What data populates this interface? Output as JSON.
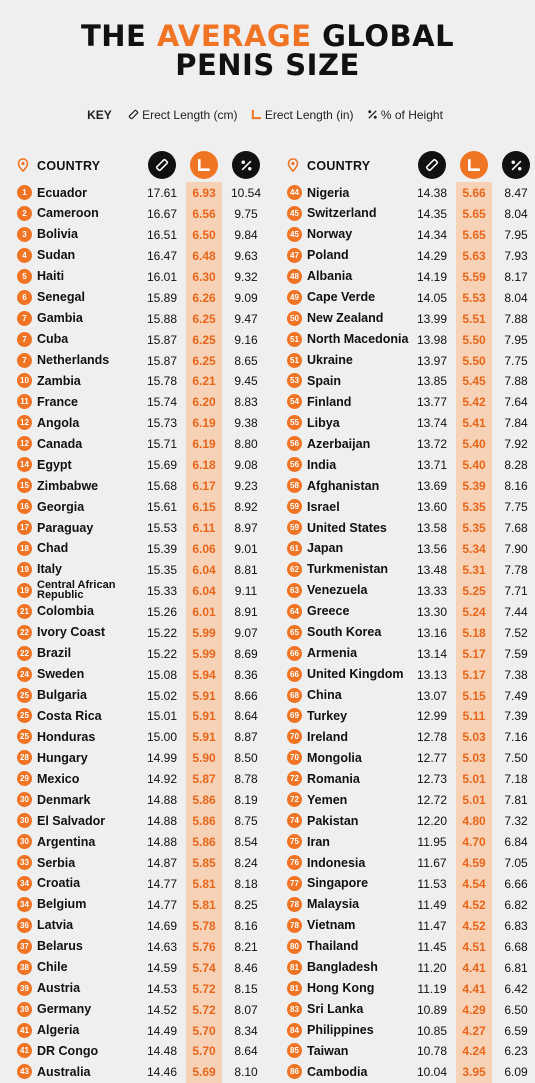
{
  "title": {
    "line1_a": "THE ",
    "line1_accent": "AVERAGE",
    "line1_b": " GLOBAL",
    "line2": "PENIS SIZE"
  },
  "key": {
    "label": "KEY",
    "cm": "Erect Length (cm)",
    "in": "Erect Length (in)",
    "pct": "% of Height"
  },
  "header": {
    "country": "COUNTRY"
  },
  "colors": {
    "accent": "#f07424",
    "band": "#f8d2b6"
  },
  "left_rows": [
    {
      "rank": "1",
      "country": "Ecuador",
      "cm": "17.61",
      "in": "6.93",
      "pct": "10.54"
    },
    {
      "rank": "2",
      "country": "Cameroon",
      "cm": "16.67",
      "in": "6.56",
      "pct": "9.75"
    },
    {
      "rank": "3",
      "country": "Bolivia",
      "cm": "16.51",
      "in": "6.50",
      "pct": "9.84"
    },
    {
      "rank": "4",
      "country": "Sudan",
      "cm": "16.47",
      "in": "6.48",
      "pct": "9.63"
    },
    {
      "rank": "5",
      "country": "Haiti",
      "cm": "16.01",
      "in": "6.30",
      "pct": "9.32"
    },
    {
      "rank": "6",
      "country": "Senegal",
      "cm": "15.89",
      "in": "6.26",
      "pct": "9.09"
    },
    {
      "rank": "7",
      "country": "Gambia",
      "cm": "15.88",
      "in": "6.25",
      "pct": "9.47"
    },
    {
      "rank": "7",
      "country": "Cuba",
      "cm": "15.87",
      "in": "6.25",
      "pct": "9.16"
    },
    {
      "rank": "7",
      "country": "Netherlands",
      "cm": "15.87",
      "in": "6.25",
      "pct": "8.65"
    },
    {
      "rank": "10",
      "country": "Zambia",
      "cm": "15.78",
      "in": "6.21",
      "pct": "9.45"
    },
    {
      "rank": "11",
      "country": "France",
      "cm": "15.74",
      "in": "6.20",
      "pct": "8.83"
    },
    {
      "rank": "12",
      "country": "Angola",
      "cm": "15.73",
      "in": "6.19",
      "pct": "9.38"
    },
    {
      "rank": "12",
      "country": "Canada",
      "cm": "15.71",
      "in": "6.19",
      "pct": "8.80"
    },
    {
      "rank": "14",
      "country": "Egypt",
      "cm": "15.69",
      "in": "6.18",
      "pct": "9.08"
    },
    {
      "rank": "15",
      "country": "Zimbabwe",
      "cm": "15.68",
      "in": "6.17",
      "pct": "9.23"
    },
    {
      "rank": "16",
      "country": "Georgia",
      "cm": "15.61",
      "in": "6.15",
      "pct": "8.92"
    },
    {
      "rank": "17",
      "country": "Paraguay",
      "cm": "15.53",
      "in": "6.11",
      "pct": "8.97"
    },
    {
      "rank": "18",
      "country": "Chad",
      "cm": "15.39",
      "in": "6.06",
      "pct": "9.01"
    },
    {
      "rank": "19",
      "country": "Italy",
      "cm": "15.35",
      "in": "6.04",
      "pct": "8.81"
    },
    {
      "rank": "19",
      "country": "Central African Republic",
      "cm": "15.33",
      "in": "6.04",
      "pct": "9.11"
    },
    {
      "rank": "21",
      "country": "Colombia",
      "cm": "15.26",
      "in": "6.01",
      "pct": "8.91"
    },
    {
      "rank": "22",
      "country": "Ivory Coast",
      "cm": "15.22",
      "in": "5.99",
      "pct": "9.07"
    },
    {
      "rank": "22",
      "country": "Brazil",
      "cm": "15.22",
      "in": "5.99",
      "pct": "8.69"
    },
    {
      "rank": "24",
      "country": "Sweden",
      "cm": "15.08",
      "in": "5.94",
      "pct": "8.36"
    },
    {
      "rank": "25",
      "country": "Bulgaria",
      "cm": "15.02",
      "in": "5.91",
      "pct": "8.66"
    },
    {
      "rank": "25",
      "country": "Costa Rica",
      "cm": "15.01",
      "in": "5.91",
      "pct": "8.64"
    },
    {
      "rank": "25",
      "country": "Honduras",
      "cm": "15.00",
      "in": "5.91",
      "pct": "8.87"
    },
    {
      "rank": "28",
      "country": "Hungary",
      "cm": "14.99",
      "in": "5.90",
      "pct": "8.50"
    },
    {
      "rank": "29",
      "country": "Mexico",
      "cm": "14.92",
      "in": "5.87",
      "pct": "8.78"
    },
    {
      "rank": "30",
      "country": "Denmark",
      "cm": "14.88",
      "in": "5.86",
      "pct": "8.19"
    },
    {
      "rank": "30",
      "country": "El Salvador",
      "cm": "14.88",
      "in": "5.86",
      "pct": "8.75"
    },
    {
      "rank": "30",
      "country": "Argentina",
      "cm": "14.88",
      "in": "5.86",
      "pct": "8.54"
    },
    {
      "rank": "33",
      "country": "Serbia",
      "cm": "14.87",
      "in": "5.85",
      "pct": "8.24"
    },
    {
      "rank": "34",
      "country": "Croatia",
      "cm": "14.77",
      "in": "5.81",
      "pct": "8.18"
    },
    {
      "rank": "34",
      "country": "Belgium",
      "cm": "14.77",
      "in": "5.81",
      "pct": "8.25"
    },
    {
      "rank": "36",
      "country": "Latvia",
      "cm": "14.69",
      "in": "5.78",
      "pct": "8.16"
    },
    {
      "rank": "37",
      "country": "Belarus",
      "cm": "14.63",
      "in": "5.76",
      "pct": "8.21"
    },
    {
      "rank": "38",
      "country": "Chile",
      "cm": "14.59",
      "in": "5.74",
      "pct": "8.46"
    },
    {
      "rank": "39",
      "country": "Austria",
      "cm": "14.53",
      "in": "5.72",
      "pct": "8.15"
    },
    {
      "rank": "39",
      "country": "Germany",
      "cm": "14.52",
      "in": "5.72",
      "pct": "8.07"
    },
    {
      "rank": "41",
      "country": "Algeria",
      "cm": "14.49",
      "in": "5.70",
      "pct": "8.34"
    },
    {
      "rank": "41",
      "country": "DR Congo",
      "cm": "14.48",
      "in": "5.70",
      "pct": "8.64"
    },
    {
      "rank": "43",
      "country": "Australia",
      "cm": "14.46",
      "in": "5.69",
      "pct": "8.10"
    }
  ],
  "right_rows": [
    {
      "rank": "44",
      "country": "Nigeria",
      "cm": "14.38",
      "in": "5.66",
      "pct": "8.47"
    },
    {
      "rank": "45",
      "country": "Switzerland",
      "cm": "14.35",
      "in": "5.65",
      "pct": "8.04"
    },
    {
      "rank": "45",
      "country": "Norway",
      "cm": "14.34",
      "in": "5.65",
      "pct": "7.95"
    },
    {
      "rank": "47",
      "country": "Poland",
      "cm": "14.29",
      "in": "5.63",
      "pct": "7.93"
    },
    {
      "rank": "48",
      "country": "Albania",
      "cm": "14.19",
      "in": "5.59",
      "pct": "8.17"
    },
    {
      "rank": "49",
      "country": "Cape Verde",
      "cm": "14.05",
      "in": "5.53",
      "pct": "8.04"
    },
    {
      "rank": "50",
      "country": "New Zealand",
      "cm": "13.99",
      "in": "5.51",
      "pct": "7.88"
    },
    {
      "rank": "51",
      "country": "North Macedonia",
      "cm": "13.98",
      "in": "5.50",
      "pct": "7.95"
    },
    {
      "rank": "51",
      "country": "Ukraine",
      "cm": "13.97",
      "in": "5.50",
      "pct": "7.75"
    },
    {
      "rank": "53",
      "country": "Spain",
      "cm": "13.85",
      "in": "5.45",
      "pct": "7.88"
    },
    {
      "rank": "54",
      "country": "Finland",
      "cm": "13.77",
      "in": "5.42",
      "pct": "7.64"
    },
    {
      "rank": "55",
      "country": "Libya",
      "cm": "13.74",
      "in": "5.41",
      "pct": "7.84"
    },
    {
      "rank": "56",
      "country": "Azerbaijan",
      "cm": "13.72",
      "in": "5.40",
      "pct": "7.92"
    },
    {
      "rank": "56",
      "country": "India",
      "cm": "13.71",
      "in": "5.40",
      "pct": "8.28"
    },
    {
      "rank": "58",
      "country": "Afghanistan",
      "cm": "13.69",
      "in": "5.39",
      "pct": "8.16"
    },
    {
      "rank": "59",
      "country": "Israel",
      "cm": "13.60",
      "in": "5.35",
      "pct": "7.75"
    },
    {
      "rank": "59",
      "country": "United States",
      "cm": "13.58",
      "in": "5.35",
      "pct": "7.68"
    },
    {
      "rank": "61",
      "country": "Japan",
      "cm": "13.56",
      "in": "5.34",
      "pct": "7.90"
    },
    {
      "rank": "62",
      "country": "Turkmenistan",
      "cm": "13.48",
      "in": "5.31",
      "pct": "7.78"
    },
    {
      "rank": "63",
      "country": "Venezuela",
      "cm": "13.33",
      "in": "5.25",
      "pct": "7.71"
    },
    {
      "rank": "64",
      "country": "Greece",
      "cm": "13.30",
      "in": "5.24",
      "pct": "7.44"
    },
    {
      "rank": "65",
      "country": "South Korea",
      "cm": "13.16",
      "in": "5.18",
      "pct": "7.52"
    },
    {
      "rank": "66",
      "country": "Armenia",
      "cm": "13.14",
      "in": "5.17",
      "pct": "7.59"
    },
    {
      "rank": "66",
      "country": "United Kingdom",
      "cm": "13.13",
      "in": "5.17",
      "pct": "7.38"
    },
    {
      "rank": "68",
      "country": "China",
      "cm": "13.07",
      "in": "5.15",
      "pct": "7.49"
    },
    {
      "rank": "69",
      "country": "Turkey",
      "cm": "12.99",
      "in": "5.11",
      "pct": "7.39"
    },
    {
      "rank": "70",
      "country": "Ireland",
      "cm": "12.78",
      "in": "5.03",
      "pct": "7.16"
    },
    {
      "rank": "70",
      "country": "Mongolia",
      "cm": "12.77",
      "in": "5.03",
      "pct": "7.50"
    },
    {
      "rank": "72",
      "country": "Romania",
      "cm": "12.73",
      "in": "5.01",
      "pct": "7.18"
    },
    {
      "rank": "72",
      "country": "Yemen",
      "cm": "12.72",
      "in": "5.01",
      "pct": "7.81"
    },
    {
      "rank": "74",
      "country": "Pakistan",
      "cm": "12.20",
      "in": "4.80",
      "pct": "7.32"
    },
    {
      "rank": "75",
      "country": "Iran",
      "cm": "11.95",
      "in": "4.70",
      "pct": "6.84"
    },
    {
      "rank": "76",
      "country": "Indonesia",
      "cm": "11.67",
      "in": "4.59",
      "pct": "7.05"
    },
    {
      "rank": "77",
      "country": "Singapore",
      "cm": "11.53",
      "in": "4.54",
      "pct": "6.66"
    },
    {
      "rank": "78",
      "country": "Malaysia",
      "cm": "11.49",
      "in": "4.52",
      "pct": "6.82"
    },
    {
      "rank": "78",
      "country": "Vietnam",
      "cm": "11.47",
      "in": "4.52",
      "pct": "6.83"
    },
    {
      "rank": "80",
      "country": "Thailand",
      "cm": "11.45",
      "in": "4.51",
      "pct": "6.68"
    },
    {
      "rank": "81",
      "country": "Bangladesh",
      "cm": "11.20",
      "in": "4.41",
      "pct": "6.81"
    },
    {
      "rank": "81",
      "country": "Hong Kong",
      "cm": "11.19",
      "in": "4.41",
      "pct": "6.42"
    },
    {
      "rank": "83",
      "country": "Sri Lanka",
      "cm": "10.89",
      "in": "4.29",
      "pct": "6.50"
    },
    {
      "rank": "84",
      "country": "Philippines",
      "cm": "10.85",
      "in": "4.27",
      "pct": "6.59"
    },
    {
      "rank": "85",
      "country": "Taiwan",
      "cm": "10.78",
      "in": "4.24",
      "pct": "6.23"
    },
    {
      "rank": "86",
      "country": "Cambodia",
      "cm": "10.04",
      "in": "3.95",
      "pct": "6.09"
    }
  ]
}
